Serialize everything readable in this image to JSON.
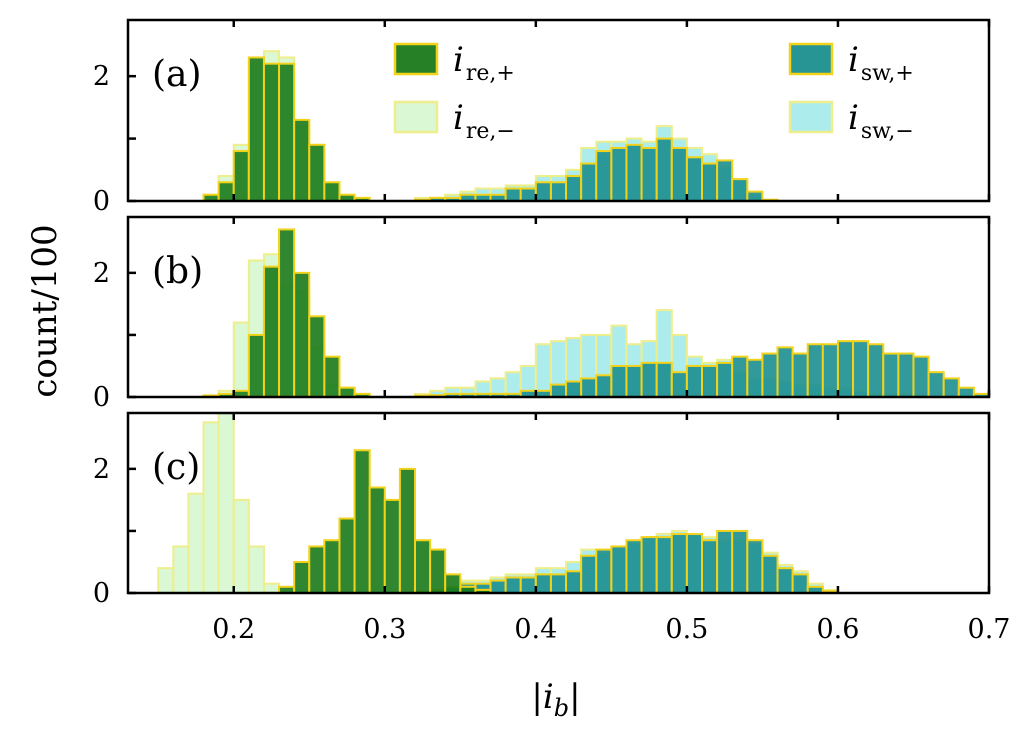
{
  "chart_data": {
    "type": "histogram",
    "x_axis": {
      "label": "|i_b|",
      "range": [
        0.13,
        0.7
      ],
      "ticks": [
        0.2,
        0.3,
        0.4,
        0.5,
        0.6,
        0.7
      ],
      "tick_labels": [
        "0.2",
        "0.3",
        "0.4",
        "0.5",
        "0.6",
        "0.7"
      ],
      "bin_width": 0.01
    },
    "y_axis": {
      "label": "count/100",
      "range": [
        0,
        2.9
      ],
      "ticks": [
        0,
        1,
        2
      ],
      "tick_labels": [
        "0",
        "",
        "2"
      ]
    },
    "legend": {
      "placement": "top",
      "entries": [
        {
          "key": "re_plus",
          "symbol": "i",
          "sub": "re,+",
          "color": "#1a7a1a",
          "edge": "#f2d21a"
        },
        {
          "key": "re_minus",
          "symbol": "i",
          "sub": "re,−",
          "color": "#d4f7cc",
          "edge": "#eeee8c"
        },
        {
          "key": "sw_plus",
          "symbol": "i",
          "sub": "sw,+",
          "color": "#1c8f8f",
          "edge": "#f2d21a"
        },
        {
          "key": "sw_minus",
          "symbol": "i",
          "sub": "sw,−",
          "color": "#9fe9ea",
          "edge": "#eeee8c"
        }
      ]
    },
    "panels": [
      {
        "label": "(a)",
        "series": {
          "re_plus": {
            "start": 0.18,
            "values": [
              0.1,
              0.3,
              0.8,
              2.3,
              2.2,
              2.2,
              1.3,
              0.9,
              0.3,
              0.1,
              0.05
            ]
          },
          "re_minus": {
            "start": 0.18,
            "values": [
              0.1,
              0.4,
              0.9,
              2.2,
              2.4,
              2.3,
              1.2,
              0.9,
              0.3,
              0.1,
              0.05
            ]
          },
          "sw_plus": {
            "start": 0.32,
            "values": [
              0.02,
              0.05,
              0.05,
              0.1,
              0.1,
              0.1,
              0.2,
              0.2,
              0.3,
              0.3,
              0.4,
              0.6,
              0.8,
              0.85,
              0.9,
              0.85,
              1.0,
              0.85,
              0.7,
              0.6,
              0.65,
              0.35,
              0.15,
              0.02
            ]
          },
          "sw_minus": {
            "start": 0.32,
            "values": [
              0.05,
              0.05,
              0.1,
              0.15,
              0.2,
              0.2,
              0.25,
              0.25,
              0.4,
              0.4,
              0.5,
              0.85,
              0.95,
              0.95,
              1.0,
              0.95,
              1.2,
              1.0,
              0.85,
              0.75,
              0.55,
              0.35,
              0.1,
              0.02
            ]
          }
        }
      },
      {
        "label": "(b)",
        "series": {
          "re_plus": {
            "start": 0.18,
            "values": [
              0.02,
              0.05,
              0.1,
              1.0,
              2.1,
              2.7,
              2.0,
              1.3,
              0.65,
              0.15,
              0.05
            ]
          },
          "re_minus": {
            "start": 0.18,
            "values": [
              0.03,
              0.1,
              1.2,
              2.2,
              2.3,
              1.8,
              1.7,
              0.8,
              0.2,
              0.15,
              0.05
            ]
          },
          "sw_plus": {
            "start": 0.32,
            "values": [
              0.02,
              0.03,
              0.05,
              0.05,
              0.05,
              0.05,
              0.05,
              0.1,
              0.1,
              0.2,
              0.25,
              0.3,
              0.35,
              0.5,
              0.5,
              0.55,
              0.55,
              0.4,
              0.5,
              0.5,
              0.55,
              0.65,
              0.6,
              0.7,
              0.8,
              0.7,
              0.85,
              0.85,
              0.9,
              0.9,
              0.85,
              0.7,
              0.7,
              0.65,
              0.4,
              0.3,
              0.15,
              0.05
            ]
          },
          "sw_minus": {
            "start": 0.32,
            "values": [
              0.05,
              0.1,
              0.15,
              0.15,
              0.25,
              0.3,
              0.4,
              0.5,
              0.85,
              0.9,
              0.95,
              1.0,
              1.0,
              1.15,
              0.85,
              0.9,
              1.4,
              1.0,
              0.65,
              0.55,
              0.6,
              0.4,
              0.3,
              0.3,
              0.25,
              0.2,
              0.2,
              0.15,
              0.15,
              0.1,
              0.05,
              0.05,
              0.05,
              0.03,
              0.02,
              0.02,
              0.02,
              0.02
            ]
          }
        }
      },
      {
        "label": "(c)",
        "series": {
          "re_plus": {
            "start": 0.23,
            "values": [
              0.1,
              0.5,
              0.75,
              0.85,
              1.2,
              2.3,
              1.7,
              1.5,
              2.0,
              0.85,
              0.7,
              0.3,
              0.1,
              0.05
            ]
          },
          "re_minus": {
            "start": 0.15,
            "values": [
              0.4,
              0.75,
              1.6,
              2.75,
              2.9,
              1.5,
              0.75,
              0.15
            ]
          },
          "sw_plus": {
            "start": 0.32,
            "values": [
              0.02,
              0.05,
              0.1,
              0.15,
              0.15,
              0.2,
              0.25,
              0.25,
              0.3,
              0.3,
              0.35,
              0.6,
              0.7,
              0.75,
              0.85,
              0.9,
              0.9,
              0.95,
              0.95,
              0.85,
              1.0,
              1.0,
              0.85,
              0.6,
              0.4,
              0.3,
              0.1,
              0.03
            ]
          },
          "sw_minus": {
            "start": 0.32,
            "values": [
              0.03,
              0.05,
              0.1,
              0.2,
              0.2,
              0.25,
              0.3,
              0.3,
              0.4,
              0.4,
              0.5,
              0.7,
              0.65,
              0.75,
              0.8,
              0.9,
              0.95,
              1.0,
              0.95,
              0.9,
              0.85,
              0.85,
              0.8,
              0.65,
              0.45,
              0.35,
              0.15,
              0.05
            ]
          }
        }
      }
    ]
  }
}
